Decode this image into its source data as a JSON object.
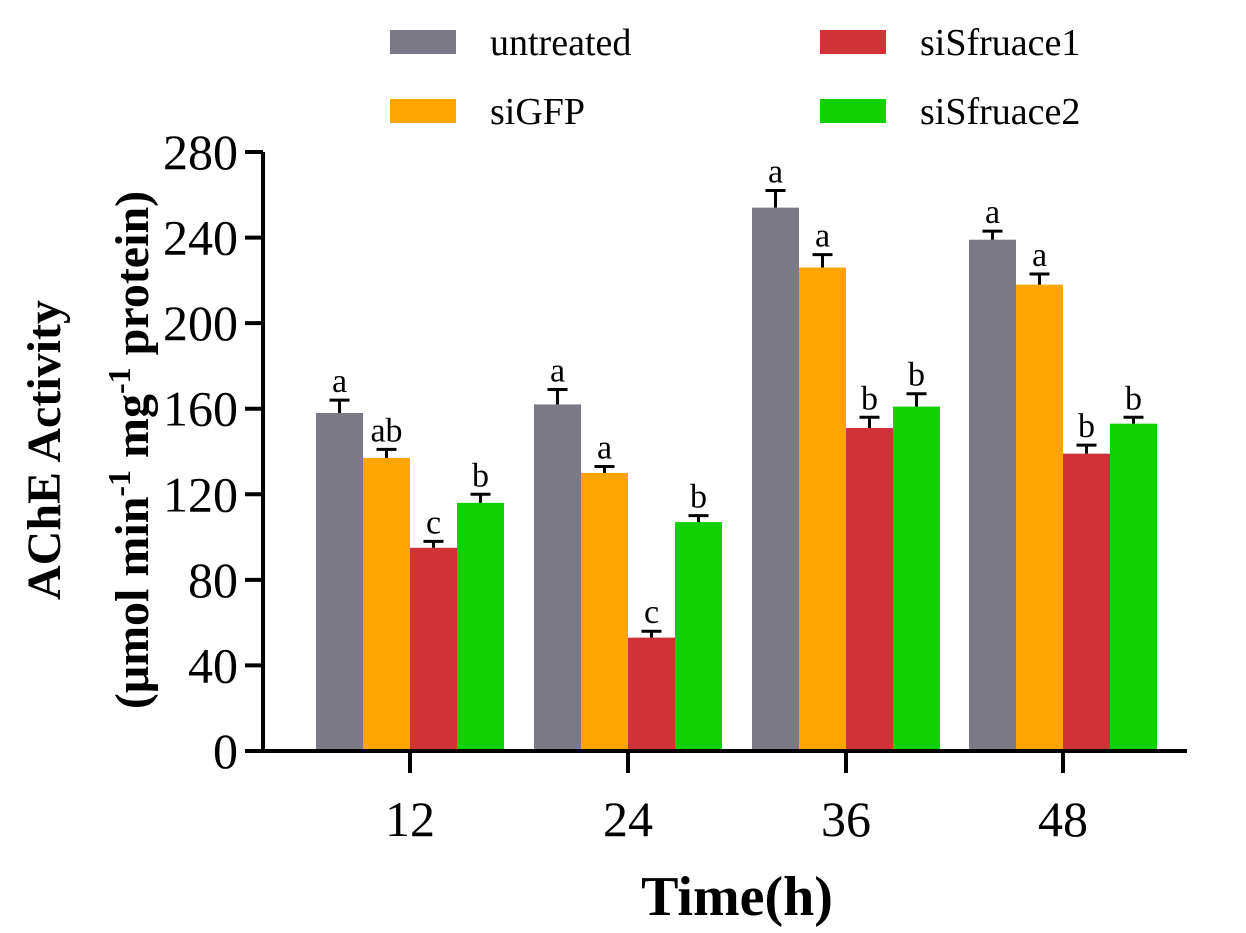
{
  "chart_data": {
    "type": "bar",
    "title": "",
    "xlabel": "Time(h)",
    "ylabel_line1": "AChE Activity",
    "ylabel_line2_parts": [
      "(μmol min",
      "-1",
      " mg",
      "-1",
      " protein)"
    ],
    "categories": [
      "12",
      "24",
      "36",
      "48"
    ],
    "ylim": [
      0,
      280
    ],
    "yticks": [
      0,
      40,
      80,
      120,
      160,
      200,
      240,
      280
    ],
    "legend_position": "top",
    "series": [
      {
        "name": "untreated",
        "color": "#7b7985",
        "values": [
          158,
          162,
          254,
          239
        ],
        "errors": [
          6,
          7,
          8,
          4
        ],
        "letters": [
          "a",
          "a",
          "a",
          "a"
        ]
      },
      {
        "name": "siGFP",
        "color": "#ffa500",
        "values": [
          137,
          130,
          226,
          218
        ],
        "errors": [
          4,
          3,
          6,
          5
        ],
        "letters": [
          "ab",
          "a",
          "a",
          "a"
        ]
      },
      {
        "name": "siSfruace1",
        "color": "#d03336",
        "values": [
          95,
          53,
          151,
          139
        ],
        "errors": [
          3,
          3,
          5,
          4
        ],
        "letters": [
          "c",
          "c",
          "b",
          "b"
        ]
      },
      {
        "name": "siSfruace2",
        "color": "#12d100",
        "values": [
          116,
          107,
          161,
          153
        ],
        "errors": [
          4,
          3,
          6,
          3
        ],
        "letters": [
          "b",
          "b",
          "b",
          "b"
        ]
      }
    ]
  }
}
